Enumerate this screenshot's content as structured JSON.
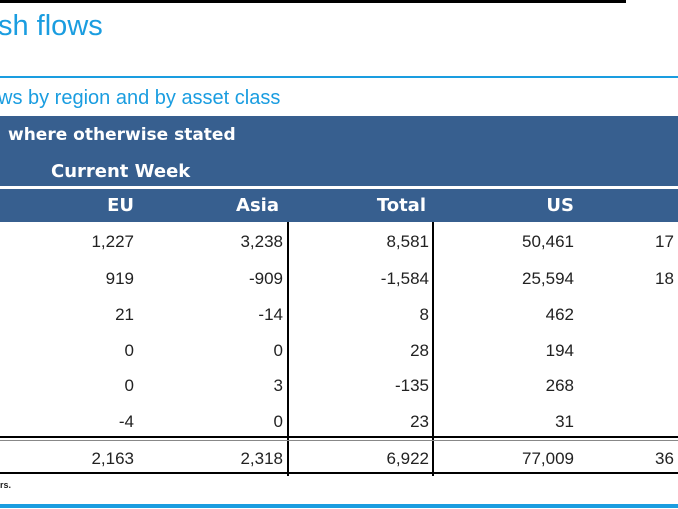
{
  "title": "sh flows",
  "subtitle": "ws by region and by asset class",
  "header": {
    "note": "where otherwise stated",
    "period": "Current Week",
    "columns": [
      "EU",
      "Asia",
      "Total",
      "US"
    ]
  },
  "rows": [
    {
      "eu": "1,227",
      "asia": "3,238",
      "total": "8,581",
      "us": "50,461",
      "next": "17"
    },
    {
      "eu": "919",
      "asia": "-909",
      "total": "-1,584",
      "us": "25,594",
      "next": "18"
    },
    {
      "eu": "21",
      "asia": "-14",
      "total": "8",
      "us": "462",
      "next": ""
    },
    {
      "eu": "0",
      "asia": "0",
      "total": "28",
      "us": "194",
      "next": ""
    },
    {
      "eu": "0",
      "asia": "3",
      "total": "-135",
      "us": "268",
      "next": ""
    },
    {
      "eu": "-4",
      "asia": "0",
      "total": "23",
      "us": "31",
      "next": ""
    }
  ],
  "totals": {
    "eu": "2,163",
    "asia": "2,318",
    "total": "6,922",
    "us": "77,009",
    "next": "36"
  },
  "footnote": "rs."
}
